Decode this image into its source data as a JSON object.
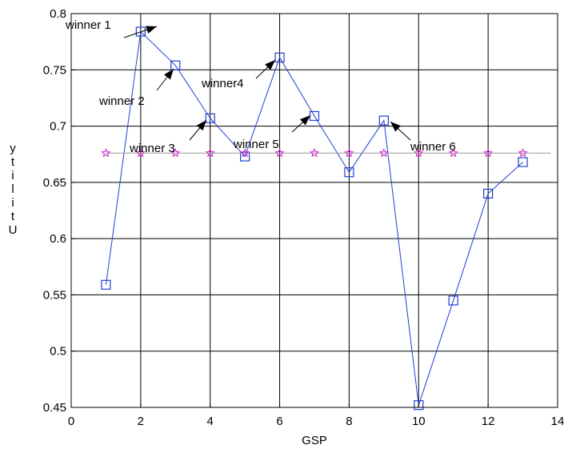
{
  "chart_data": {
    "type": "line",
    "xlabel": "GSP",
    "ylabel": "Utility",
    "xlim": [
      0,
      14
    ],
    "ylim": [
      0.45,
      0.8
    ],
    "xticks": [
      0,
      2,
      4,
      6,
      8,
      10,
      12,
      14
    ],
    "yticks": [
      0.45,
      0.5,
      0.55,
      0.6,
      0.65,
      0.7,
      0.75,
      0.8
    ],
    "grid": true,
    "series": [
      {
        "marker": "square",
        "color": "#1f3fd0",
        "x": [
          1,
          2,
          3,
          4,
          5,
          6,
          7,
          8,
          9,
          10,
          11,
          12,
          13
        ],
        "y": [
          0.559,
          0.784,
          0.754,
          0.707,
          0.673,
          0.761,
          0.709,
          0.659,
          0.705,
          0.452,
          0.545,
          0.64,
          0.668
        ]
      },
      {
        "marker": "star",
        "color": "#d020d0",
        "line": "horizontal",
        "x": [
          1,
          2,
          3,
          4,
          5,
          6,
          7,
          8,
          9,
          10,
          11,
          12,
          13
        ],
        "y": [
          0.676,
          0.676,
          0.676,
          0.676,
          0.676,
          0.676,
          0.676,
          0.676,
          0.676,
          0.676,
          0.676,
          0.676,
          0.676
        ]
      }
    ],
    "annotations": [
      {
        "text": "winner 1",
        "x": 2
      },
      {
        "text": "winner 2",
        "x": 3
      },
      {
        "text": "winner 3",
        "x": 4
      },
      {
        "text": "winner4",
        "x": 6
      },
      {
        "text": "winner 5",
        "x": 7
      },
      {
        "text": "winner 6",
        "x": 9
      }
    ]
  }
}
